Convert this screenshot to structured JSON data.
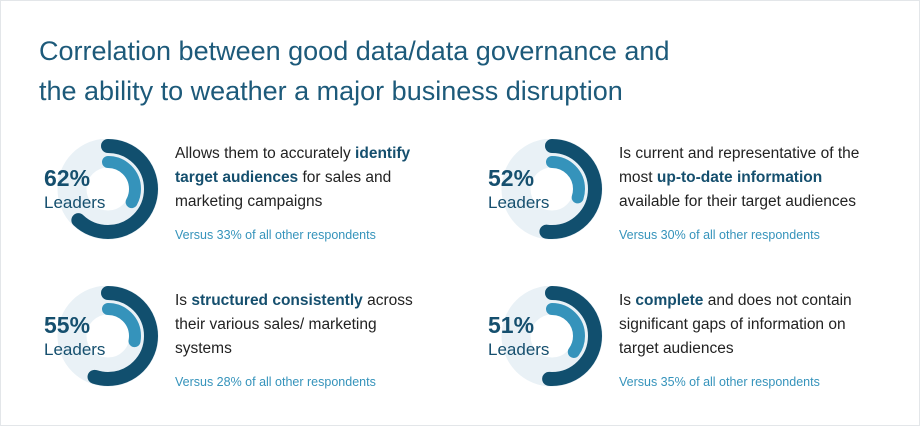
{
  "title_lines": [
    "Correlation between good data/data governance and",
    "the ability to weather a major business disruption"
  ],
  "colors": {
    "leaders": "#114f6e",
    "others": "#3593bb",
    "track": "#e9f1f6"
  },
  "chart_data": {
    "type": "donut",
    "title": "Correlation between good data/data governance and the ability to weather a major business disruption",
    "series_names": [
      "Leaders",
      "All other respondents"
    ],
    "items": [
      {
        "leaders": 62,
        "others": 33,
        "pct_label": "62%",
        "group_label": "Leaders",
        "desc_pre": "Allows them to accurately ",
        "desc_bold": "identify target audiences",
        "desc_post": " for sales and marketing campaigns",
        "versus": "Versus 33% of all other respondents"
      },
      {
        "leaders": 52,
        "others": 30,
        "pct_label": "52%",
        "group_label": "Leaders",
        "desc_pre": "Is current and representative of the most ",
        "desc_bold": "up-to-date information",
        "desc_post": " available for their target audiences",
        "versus": "Versus 30% of all other respondents"
      },
      {
        "leaders": 55,
        "others": 28,
        "pct_label": "55%",
        "group_label": "Leaders",
        "desc_pre": "Is ",
        "desc_bold": "structured consistently",
        "desc_post": " across their various sales/ marketing systems",
        "versus": "Versus 28% of all other respondents"
      },
      {
        "leaders": 51,
        "others": 35,
        "pct_label": "51%",
        "group_label": "Leaders",
        "desc_pre": "Is ",
        "desc_bold": "complete",
        "desc_post": " and does not contain significant gaps of information on target audiences",
        "versus": "Versus 35% of all other respondents"
      }
    ]
  }
}
